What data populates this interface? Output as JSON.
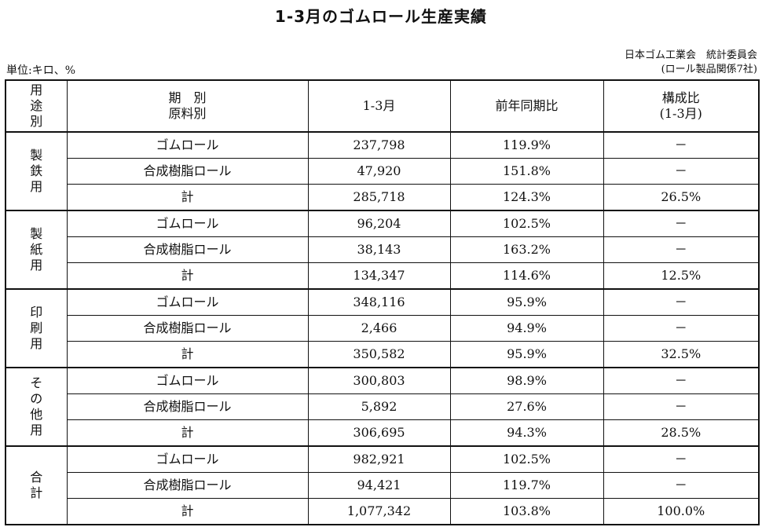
{
  "title": "1-3月のゴムロール生産実績",
  "unit": "単位:キロ、%",
  "source": {
    "line1": "日本ゴム工業会　統計委員会",
    "line2": "(ロール製品関係7社)"
  },
  "table": {
    "headers": {
      "use": "用途別",
      "period_line1": "期　別",
      "period_line2": "原料別",
      "jan_mar": "1-3月",
      "yoy": "前年同期比",
      "share_line1": "構成比",
      "share_line2": "(1-3月)"
    },
    "groups": [
      {
        "use": "製鉄用",
        "rows": [
          {
            "material": "ゴムロール",
            "value": "237,798",
            "yoy": "119.9%",
            "share": "－"
          },
          {
            "material": "合成樹脂ロール",
            "value": "47,920",
            "yoy": "151.8%",
            "share": "－"
          },
          {
            "material": "計",
            "value": "285,718",
            "yoy": "124.3%",
            "share": "26.5%"
          }
        ]
      },
      {
        "use": "製紙用",
        "rows": [
          {
            "material": "ゴムロール",
            "value": "96,204",
            "yoy": "102.5%",
            "share": "－"
          },
          {
            "material": "合成樹脂ロール",
            "value": "38,143",
            "yoy": "163.2%",
            "share": "－"
          },
          {
            "material": "計",
            "value": "134,347",
            "yoy": "114.6%",
            "share": "12.5%"
          }
        ]
      },
      {
        "use": "印刷用",
        "rows": [
          {
            "material": "ゴムロール",
            "value": "348,116",
            "yoy": "95.9%",
            "share": "－"
          },
          {
            "material": "合成樹脂ロール",
            "value": "2,466",
            "yoy": "94.9%",
            "share": "－"
          },
          {
            "material": "計",
            "value": "350,582",
            "yoy": "95.9%",
            "share": "32.5%"
          }
        ]
      },
      {
        "use": "その他用",
        "rows": [
          {
            "material": "ゴムロール",
            "value": "300,803",
            "yoy": "98.9%",
            "share": "－"
          },
          {
            "material": "合成樹脂ロール",
            "value": "5,892",
            "yoy": "27.6%",
            "share": "－"
          },
          {
            "material": "計",
            "value": "306,695",
            "yoy": "94.3%",
            "share": "28.5%"
          }
        ]
      },
      {
        "use": "合計",
        "rows": [
          {
            "material": "ゴムロール",
            "value": "982,921",
            "yoy": "102.5%",
            "share": "－"
          },
          {
            "material": "合成樹脂ロール",
            "value": "94,421",
            "yoy": "119.7%",
            "share": "－"
          },
          {
            "material": "計",
            "value": "1,077,342",
            "yoy": "103.8%",
            "share": "100.0%"
          }
        ]
      }
    ]
  }
}
